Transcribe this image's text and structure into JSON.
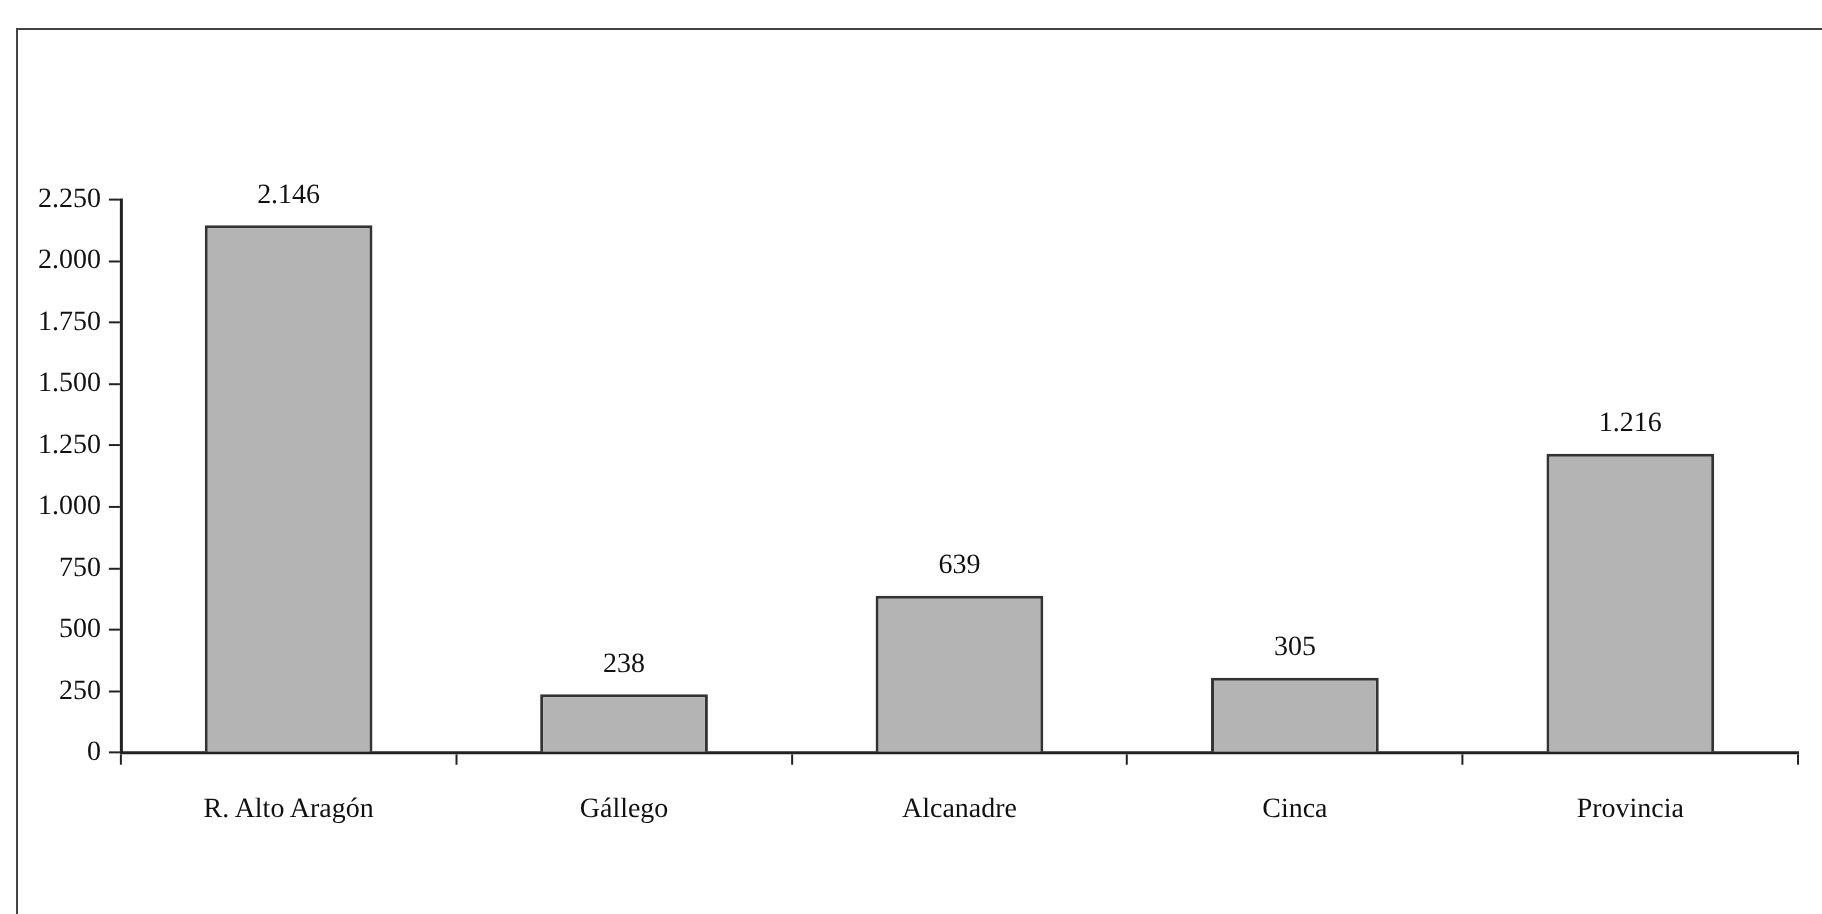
{
  "chart_data": {
    "type": "bar",
    "categories": [
      "R. Alto Aragón",
      "Gállego",
      "Alcanadre",
      "Cinca",
      "Provincia"
    ],
    "values": [
      2146,
      238,
      639,
      305,
      1216
    ],
    "value_labels": [
      "2.146",
      "238",
      "639",
      "305",
      "1.216"
    ],
    "color": "#b4b4b4",
    "ylim": [
      0,
      2250
    ],
    "yticks": [
      0,
      250,
      500,
      750,
      {
        "value": 1000,
        "label": "1.000"
      },
      {
        "value": 1250,
        "label": "1.250"
      },
      {
        "value": 1500,
        "label": "1.500"
      },
      {
        "value": 1750,
        "label": "1.750"
      },
      {
        "value": 2000,
        "label": "2.000"
      },
      {
        "value": 2250,
        "label": "2.250"
      }
    ],
    "grid": false,
    "legend": false
  }
}
